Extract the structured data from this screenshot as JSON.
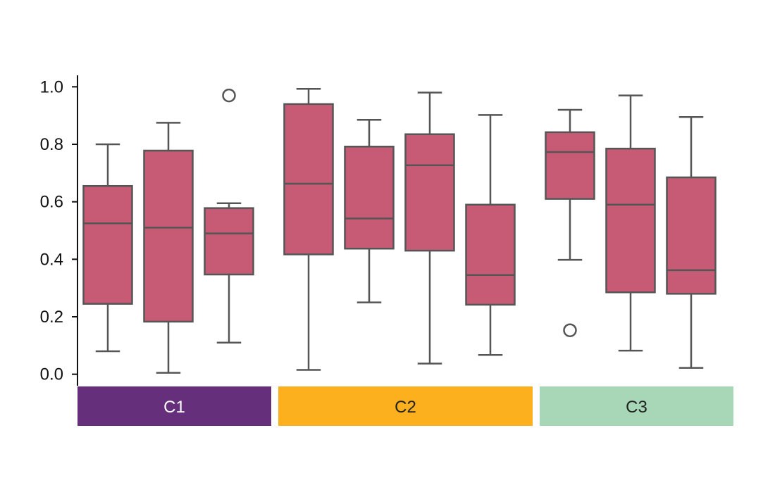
{
  "chart_data": {
    "type": "box",
    "title": "",
    "xlabel": "",
    "ylabel": "",
    "ylim": [
      -0.04,
      1.04
    ],
    "yticks": [
      "0.0",
      "0.2",
      "0.4",
      "0.6",
      "0.8",
      "1.0"
    ],
    "grid": false,
    "box_color": "#c75b75",
    "line_color": "#555555",
    "groups": [
      {
        "label": "C1",
        "color": "#652f7b",
        "text_color": "#ffffff",
        "boxes": [
          {
            "whislo": 0.08,
            "q1": 0.245,
            "med": 0.525,
            "q3": 0.655,
            "whishi": 0.8,
            "fliers": []
          },
          {
            "whislo": 0.005,
            "q1": 0.183,
            "med": 0.51,
            "q3": 0.778,
            "whishi": 0.875,
            "fliers": []
          },
          {
            "whislo": 0.11,
            "q1": 0.347,
            "med": 0.49,
            "q3": 0.578,
            "whishi": 0.595,
            "fliers": [
              0.97
            ]
          }
        ]
      },
      {
        "label": "C2",
        "color": "#fcb01d",
        "text_color": "#222222",
        "boxes": [
          {
            "whislo": 0.015,
            "q1": 0.417,
            "med": 0.663,
            "q3": 0.94,
            "whishi": 0.993,
            "fliers": []
          },
          {
            "whislo": 0.25,
            "q1": 0.437,
            "med": 0.542,
            "q3": 0.792,
            "whishi": 0.885,
            "fliers": []
          },
          {
            "whislo": 0.037,
            "q1": 0.43,
            "med": 0.727,
            "q3": 0.835,
            "whishi": 0.98,
            "fliers": []
          },
          {
            "whislo": 0.067,
            "q1": 0.242,
            "med": 0.345,
            "q3": 0.59,
            "whishi": 0.902,
            "fliers": []
          }
        ]
      },
      {
        "label": "C3",
        "color": "#a8d7b8",
        "text_color": "#222222",
        "boxes": [
          {
            "whislo": 0.398,
            "q1": 0.61,
            "med": 0.773,
            "q3": 0.842,
            "whishi": 0.92,
            "fliers": [
              0.153
            ]
          },
          {
            "whislo": 0.082,
            "q1": 0.285,
            "med": 0.59,
            "q3": 0.785,
            "whishi": 0.97,
            "fliers": []
          },
          {
            "whislo": 0.022,
            "q1": 0.28,
            "med": 0.362,
            "q3": 0.685,
            "whishi": 0.895,
            "fliers": []
          }
        ]
      }
    ]
  }
}
